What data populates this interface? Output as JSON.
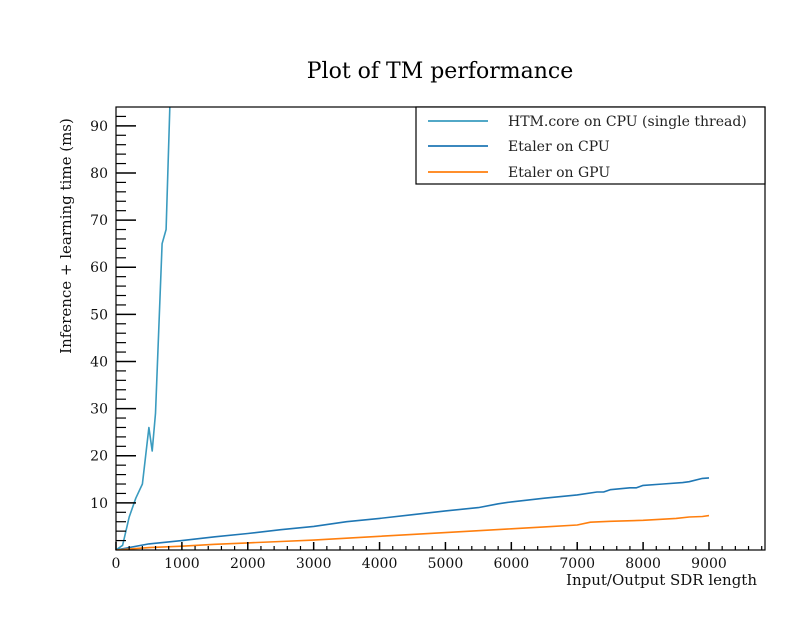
{
  "chart_data": {
    "type": "line",
    "title": "Plot of TM performance",
    "xlabel": "Input/Output SDR length",
    "ylabel": "Inference + learning time (ms)",
    "xlim": [
      0,
      9850
    ],
    "ylim": [
      0,
      94
    ],
    "x_ticks": [
      0,
      1000,
      2000,
      3000,
      4000,
      5000,
      6000,
      7000,
      8000,
      9000
    ],
    "x_tick_labels": [
      "0",
      "1000",
      "2000",
      "3000",
      "4000",
      "5000",
      "6000",
      "7000",
      "8000",
      "9000"
    ],
    "y_ticks": [
      10,
      20,
      30,
      40,
      50,
      60,
      70,
      80,
      90
    ],
    "y_tick_labels": [
      "10",
      "20",
      "30",
      "40",
      "50",
      "60",
      "70",
      "80",
      "90"
    ],
    "grid": false,
    "legend_position": "top-right",
    "series": [
      {
        "name": "HTM.core on CPU (single thread)",
        "color": "#3a9bbf",
        "x": [
          0,
          100,
          200,
          300,
          400,
          500,
          550,
          600,
          700,
          760,
          830
        ],
        "y": [
          0,
          1,
          7,
          11,
          14,
          26,
          21,
          29,
          65,
          68,
          100
        ]
      },
      {
        "name": "Etaler on CPU",
        "color": "#1f77b4",
        "x": [
          0,
          500,
          1000,
          1500,
          2000,
          2500,
          3000,
          3500,
          4000,
          4500,
          5000,
          5500,
          5800,
          6000,
          6500,
          7000,
          7300,
          7400,
          7500,
          7800,
          7900,
          8000,
          8300,
          8600,
          8700,
          8900,
          9000
        ],
        "y": [
          0,
          1.3,
          2,
          2.8,
          3.5,
          4.3,
          5,
          6,
          6.7,
          7.5,
          8.3,
          9,
          9.8,
          10.2,
          11,
          11.7,
          12.3,
          12.3,
          12.8,
          13.2,
          13.2,
          13.7,
          14,
          14.3,
          14.5,
          15.2,
          15.3
        ]
      },
      {
        "name": "Etaler on GPU",
        "color": "#ff7f0e",
        "x": [
          0,
          500,
          1000,
          1500,
          2000,
          2500,
          3000,
          3500,
          4000,
          4500,
          5000,
          5500,
          6000,
          6500,
          7000,
          7200,
          7500,
          8000,
          8500,
          8700,
          8900,
          9000
        ],
        "y": [
          0,
          0.5,
          0.8,
          1.2,
          1.5,
          1.8,
          2.1,
          2.5,
          2.9,
          3.3,
          3.7,
          4.1,
          4.5,
          4.9,
          5.3,
          5.9,
          6.1,
          6.3,
          6.7,
          7.0,
          7.1,
          7.3
        ]
      }
    ]
  }
}
